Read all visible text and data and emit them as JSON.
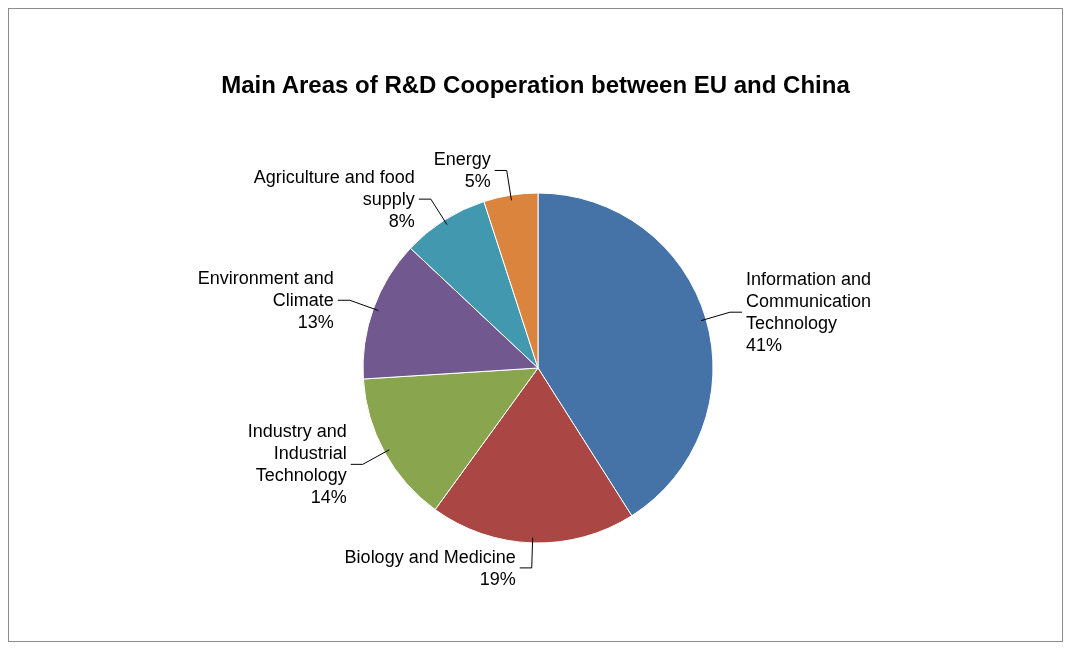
{
  "chart_data": {
    "type": "pie",
    "title": "Main Areas of R&D Cooperation between EU and China",
    "categories": [
      "Information and Communication Technology",
      "Biology and Medicine",
      "Industry and Industrial Technology",
      "Environment and Climate",
      "Agriculture and food supply",
      "Energy"
    ],
    "values": [
      41,
      19,
      14,
      13,
      8,
      5
    ],
    "colors": [
      "#4572a7",
      "#aa4643",
      "#89a54e",
      "#71588f",
      "#4198af",
      "#db843d"
    ],
    "value_labels": [
      "41%",
      "19%",
      "14%",
      "13%",
      "8%",
      "5%"
    ]
  }
}
